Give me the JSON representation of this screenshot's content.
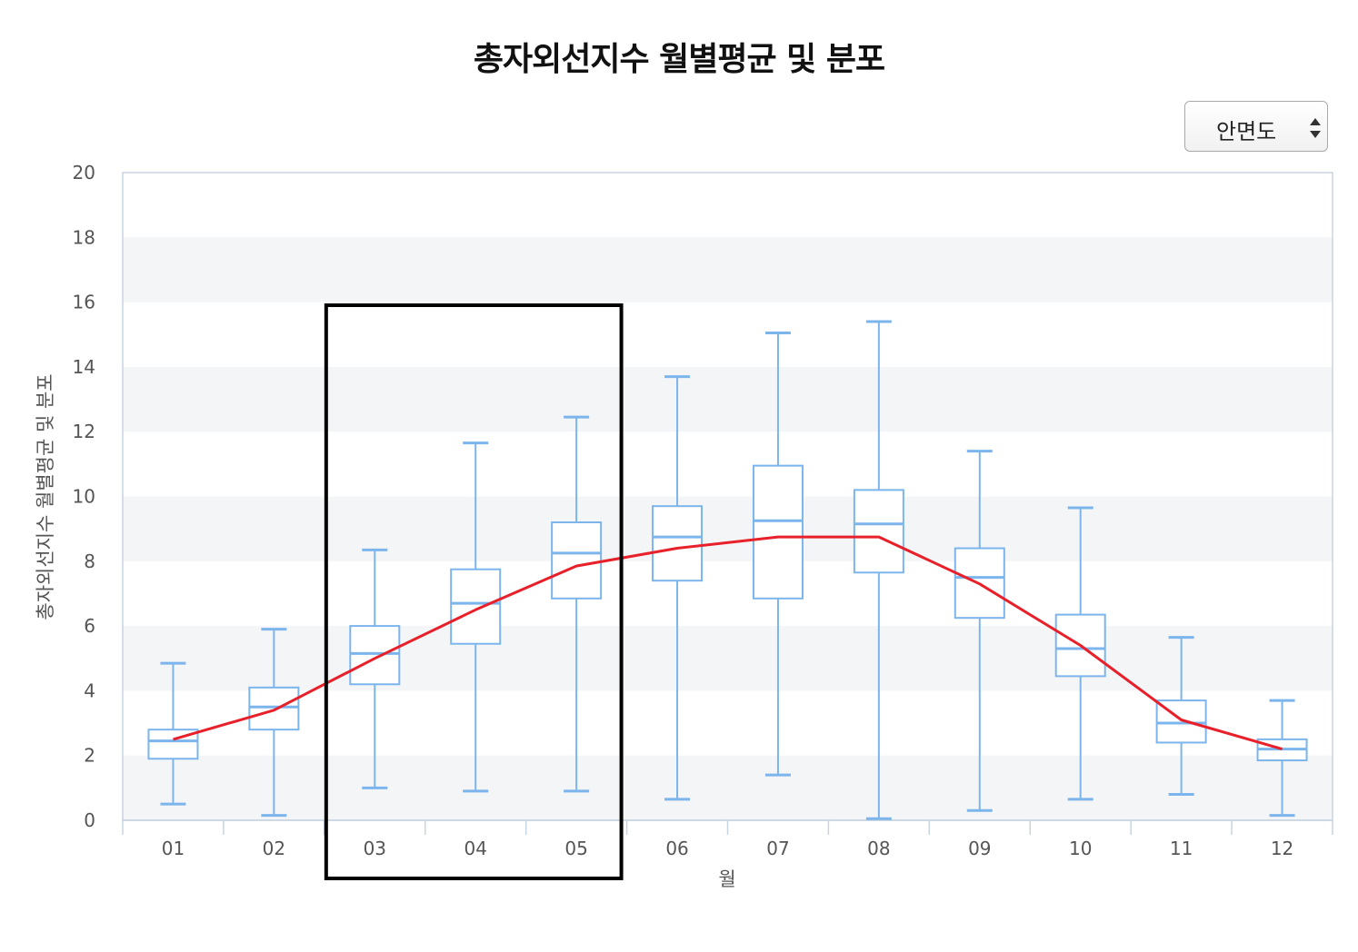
{
  "chart_data": {
    "type": "box",
    "title": "총자외선지수 월별평균 및 분포",
    "xlabel": "월",
    "ylabel": "총자외선지수 월별평균 및 분포",
    "ylim": [
      0,
      20
    ],
    "yticks": [
      0,
      2,
      4,
      6,
      8,
      10,
      12,
      14,
      16,
      18,
      20
    ],
    "categories": [
      "01",
      "02",
      "03",
      "04",
      "05",
      "06",
      "07",
      "08",
      "09",
      "10",
      "11",
      "12"
    ],
    "boxes": [
      {
        "min": 0.5,
        "q1": 1.9,
        "median": 2.45,
        "q3": 2.8,
        "max": 4.85
      },
      {
        "min": 0.15,
        "q1": 2.8,
        "median": 3.5,
        "q3": 4.1,
        "max": 5.9
      },
      {
        "min": 1.0,
        "q1": 4.2,
        "median": 5.15,
        "q3": 6.0,
        "max": 8.35
      },
      {
        "min": 0.9,
        "q1": 5.45,
        "median": 6.7,
        "q3": 7.75,
        "max": 11.65
      },
      {
        "min": 0.9,
        "q1": 6.85,
        "median": 8.25,
        "q3": 9.2,
        "max": 12.45
      },
      {
        "min": 0.65,
        "q1": 7.4,
        "median": 8.75,
        "q3": 9.7,
        "max": 13.7
      },
      {
        "min": 1.4,
        "q1": 6.85,
        "median": 9.25,
        "q3": 10.95,
        "max": 15.05
      },
      {
        "min": 0.05,
        "q1": 7.65,
        "median": 9.15,
        "q3": 10.2,
        "max": 15.4
      },
      {
        "min": 0.3,
        "q1": 6.25,
        "median": 7.5,
        "q3": 8.4,
        "max": 11.4
      },
      {
        "min": 0.65,
        "q1": 4.45,
        "median": 5.3,
        "q3": 6.35,
        "max": 9.65
      },
      {
        "min": 0.8,
        "q1": 2.4,
        "median": 3.0,
        "q3": 3.7,
        "max": 5.65
      },
      {
        "min": 0.15,
        "q1": 1.85,
        "median": 2.2,
        "q3": 2.5,
        "max": 3.7
      }
    ],
    "mean_line": [
      2.5,
      3.4,
      5.0,
      6.5,
      7.85,
      8.4,
      8.75,
      8.75,
      7.3,
      5.4,
      3.1,
      2.2
    ],
    "highlight": {
      "from": "03",
      "to": "05"
    },
    "grid": true,
    "legend": "none",
    "colors": {
      "box": "#7cb5ec",
      "mean_line": "#e8202a",
      "band": "#f3f5f7",
      "highlight": "#000000"
    }
  },
  "controls": {
    "station_select": {
      "selected": "안면도",
      "icon": "up-down-arrows-icon"
    }
  }
}
